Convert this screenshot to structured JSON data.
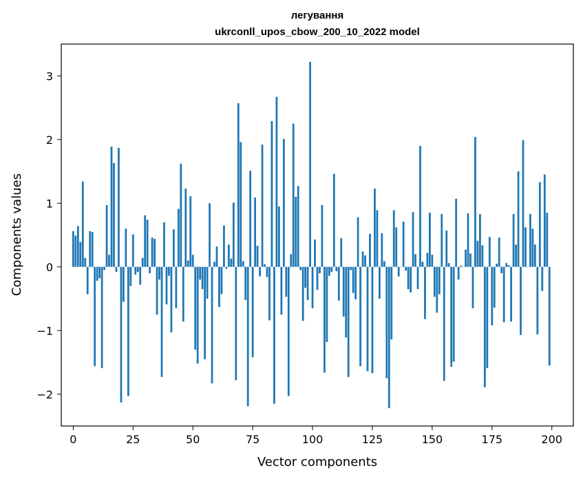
{
  "chart_data": {
    "type": "bar",
    "title_line1": "легування",
    "title_line2": "ukrconll_upos_cbow_200_10_2022 model",
    "xlabel": "Vector components",
    "ylabel": "Components values",
    "xlim": [
      -5,
      209
    ],
    "ylim": [
      -2.5,
      3.5
    ],
    "xticks": [
      0,
      25,
      50,
      75,
      100,
      125,
      150,
      175,
      200
    ],
    "yticks": [
      -2,
      -1,
      0,
      1,
      2,
      3
    ],
    "ytick_labels": [
      "−2",
      "−1",
      "0",
      "1",
      "2",
      "3"
    ],
    "bar_color": "#1f77b4",
    "grid": false,
    "legend": "none",
    "x": [
      0,
      1,
      2,
      3,
      4,
      5,
      6,
      7,
      8,
      9,
      10,
      11,
      12,
      13,
      14,
      15,
      16,
      17,
      18,
      19,
      20,
      21,
      22,
      23,
      24,
      25,
      26,
      27,
      28,
      29,
      30,
      31,
      32,
      33,
      34,
      35,
      36,
      37,
      38,
      39,
      40,
      41,
      42,
      43,
      44,
      45,
      46,
      47,
      48,
      49,
      50,
      51,
      52,
      53,
      54,
      55,
      56,
      57,
      58,
      59,
      60,
      61,
      62,
      63,
      64,
      65,
      66,
      67,
      68,
      69,
      70,
      71,
      72,
      73,
      74,
      75,
      76,
      77,
      78,
      79,
      80,
      81,
      82,
      83,
      84,
      85,
      86,
      87,
      88,
      89,
      90,
      91,
      92,
      93,
      94,
      95,
      96,
      97,
      98,
      99,
      100,
      101,
      102,
      103,
      104,
      105,
      106,
      107,
      108,
      109,
      110,
      111,
      112,
      113,
      114,
      115,
      116,
      117,
      118,
      119,
      120,
      121,
      122,
      123,
      124,
      125,
      126,
      127,
      128,
      129,
      130,
      131,
      132,
      133,
      134,
      135,
      136,
      137,
      138,
      139,
      140,
      141,
      142,
      143,
      144,
      145,
      146,
      147,
      148,
      149,
      150,
      151,
      152,
      153,
      154,
      155,
      156,
      157,
      158,
      159,
      160,
      161,
      162,
      163,
      164,
      165,
      166,
      167,
      168,
      169,
      170,
      171,
      172,
      173,
      174,
      175,
      176,
      177,
      178,
      179,
      180,
      181,
      182,
      183,
      184,
      185,
      186,
      187,
      188,
      189,
      190,
      191,
      192,
      193,
      194,
      195,
      196,
      197,
      198,
      199
    ],
    "values": [
      0.56,
      0.49,
      0.64,
      0.39,
      1.34,
      0.14,
      -0.43,
      0.56,
      0.55,
      -1.56,
      -0.22,
      -0.18,
      -1.59,
      -0.05,
      0.97,
      0.19,
      1.89,
      1.63,
      -0.08,
      1.87,
      -2.13,
      -0.55,
      0.6,
      -2.03,
      -0.3,
      0.51,
      -0.12,
      -0.08,
      -0.28,
      0.14,
      0.81,
      0.74,
      -0.1,
      0.46,
      0.44,
      -0.75,
      -0.2,
      -1.73,
      0.7,
      -0.59,
      -0.14,
      -1.03,
      0.59,
      -0.65,
      0.91,
      1.62,
      -0.86,
      1.23,
      0.1,
      1.11,
      0.19,
      -1.3,
      -1.52,
      -0.2,
      -0.35,
      -1.45,
      -0.5,
      1.0,
      -1.83,
      0.08,
      0.32,
      -0.63,
      -0.43,
      0.65,
      -0.03,
      0.35,
      0.13,
      1.01,
      -1.78,
      2.57,
      1.96,
      0.09,
      -0.52,
      -2.19,
      1.51,
      -1.42,
      1.09,
      0.33,
      -0.15,
      1.92,
      0.04,
      -0.16,
      -0.84,
      2.29,
      -2.15,
      2.67,
      0.95,
      -0.75,
      2.01,
      -0.47,
      -2.03,
      0.2,
      2.25,
      1.1,
      1.27,
      -0.05,
      -0.85,
      -0.33,
      -0.52,
      3.22,
      -0.65,
      0.43,
      -0.36,
      -0.1,
      0.97,
      -1.66,
      -1.18,
      -0.14,
      -0.08,
      1.46,
      -0.07,
      -0.53,
      0.45,
      -0.78,
      -1.11,
      -1.73,
      -0.05,
      -0.41,
      -0.51,
      0.78,
      -1.56,
      0.24,
      0.18,
      -1.64,
      0.52,
      -1.67,
      1.23,
      0.89,
      -0.5,
      0.53,
      0.09,
      -1.75,
      -2.22,
      -1.14,
      0.89,
      0.62,
      -0.15,
      0.0,
      0.71,
      -0.06,
      -0.35,
      -0.4,
      0.86,
      0.2,
      -0.35,
      1.9,
      0.08,
      -0.82,
      0.22,
      0.85,
      0.19,
      -0.47,
      -0.72,
      -0.43,
      0.83,
      -1.79,
      0.57,
      0.06,
      -1.57,
      -1.49,
      1.07,
      -0.2,
      0.02,
      0.0,
      0.27,
      0.84,
      0.21,
      -0.65,
      2.04,
      0.41,
      0.83,
      0.34,
      -1.89,
      -1.59,
      0.47,
      -0.92,
      -0.64,
      0.05,
      0.46,
      -0.1,
      -0.87,
      0.06,
      0.03,
      -0.86,
      0.83,
      0.35,
      1.5,
      -1.07,
      1.99,
      0.62,
      0.0,
      0.83,
      0.6,
      0.35,
      -1.06,
      1.33,
      -0.38,
      1.45,
      0.85,
      -1.55
    ]
  }
}
